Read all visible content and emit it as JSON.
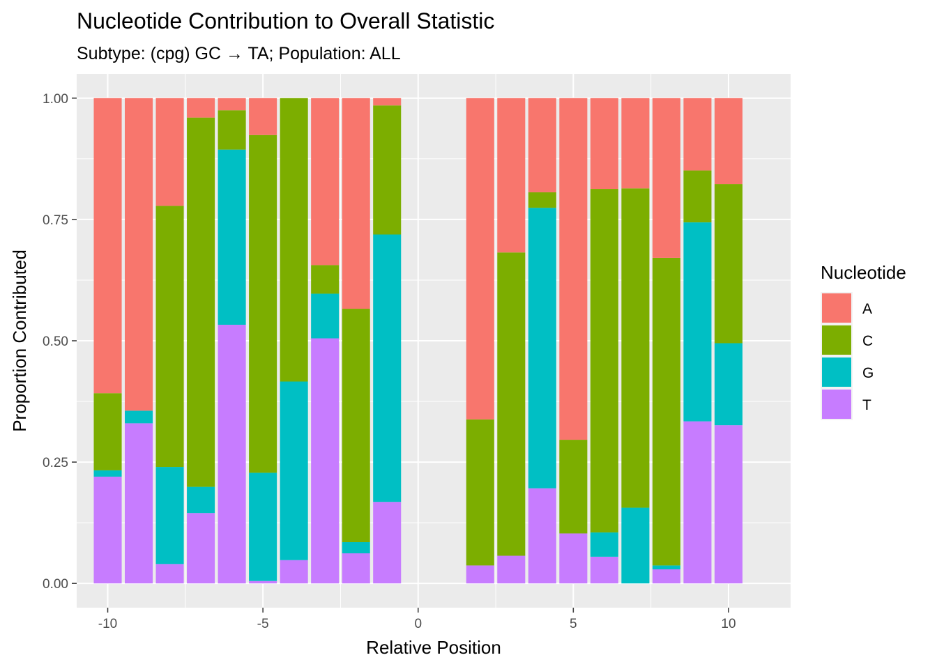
{
  "chart_data": {
    "type": "bar",
    "stacked": true,
    "title": "Nucleotide Contribution to Overall Statistic",
    "subtitle": "Subtype: (cpg) GC → TA; Population: ALL",
    "xlabel": "Relative Position",
    "ylabel": "Proportion Contributed",
    "xlim": [
      -11,
      12
    ],
    "ylim": [
      -0.05,
      1.05
    ],
    "x_ticks": [
      -10,
      -5,
      0,
      5,
      10
    ],
    "x_tick_labels": [
      "-10",
      "-5",
      "0",
      "5",
      "10"
    ],
    "y_ticks": [
      0,
      0.25,
      0.5,
      0.75,
      1.0
    ],
    "y_tick_labels": [
      "0.00",
      "0.25",
      "0.50",
      "0.75",
      "1.00"
    ],
    "grid": true,
    "legend": {
      "title": "Nucleotide",
      "position": "right"
    },
    "x": [
      -10,
      -9,
      -8,
      -7,
      -6,
      -5,
      -4,
      -3,
      -2,
      -1,
      2,
      3,
      4,
      5,
      6,
      7,
      8,
      9,
      10
    ],
    "series": [
      {
        "name": "T",
        "color": "#C77CFF",
        "values": [
          0.22,
          0.33,
          0.04,
          0.145,
          0.533,
          0.005,
          0.048,
          0.505,
          0.062,
          0.168,
          0.037,
          0.057,
          0.196,
          0.103,
          0.055,
          0.0,
          0.029,
          0.334,
          0.326
        ]
      },
      {
        "name": "G",
        "color": "#00BFC4",
        "values": [
          0.013,
          0.026,
          0.2,
          0.054,
          0.361,
          0.223,
          0.368,
          0.092,
          0.023,
          0.551,
          0.0,
          0.0,
          0.578,
          0.0,
          0.05,
          0.156,
          0.008,
          0.41,
          0.169
        ]
      },
      {
        "name": "C",
        "color": "#7CAE00",
        "values": [
          0.159,
          0.0,
          0.538,
          0.761,
          0.081,
          0.696,
          0.584,
          0.059,
          0.481,
          0.266,
          0.301,
          0.625,
          0.032,
          0.193,
          0.708,
          0.658,
          0.634,
          0.107,
          0.328
        ]
      },
      {
        "name": "A",
        "color": "#F8766D",
        "values": [
          0.608,
          0.644,
          0.222,
          0.04,
          0.025,
          0.076,
          0.0,
          0.344,
          0.434,
          0.015,
          0.662,
          0.318,
          0.194,
          0.704,
          0.187,
          0.186,
          0.329,
          0.149,
          0.177
        ]
      }
    ],
    "legend_order": [
      "A",
      "C",
      "G",
      "T"
    ]
  }
}
